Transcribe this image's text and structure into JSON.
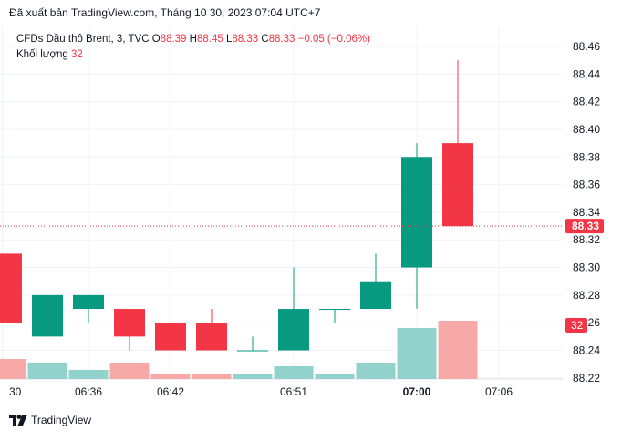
{
  "header": {
    "published": "Đã xuất bản TradingView.com, Tháng 10 30, 2023 07:04 UTC+7"
  },
  "legend": {
    "symbol": "CFDs Dầu thô Brent, 3, TVC",
    "o_label": "O",
    "o_value": "88.39",
    "h_label": "H",
    "h_value": "88.45",
    "l_label": "L",
    "l_value": "88.33",
    "c_label": "C",
    "c_value": "88.33",
    "change": "−0.05 (−0.06%)",
    "volume_label": "Khối lượng",
    "volume_value": "32"
  },
  "brand": {
    "name": "TradingView"
  },
  "colors": {
    "up": "#089981",
    "down": "#f23645",
    "vol_up": "#92d2cc",
    "vol_down": "#f7a9a7",
    "grid": "#f0f3fa",
    "price_line": "#f23645"
  },
  "chart_data": {
    "type": "candlestick",
    "interval": "3m",
    "y_ticks": [
      "88.22",
      "88.24",
      "88.26",
      "88.28",
      "88.30",
      "88.32",
      "88.34",
      "88.36",
      "88.38",
      "88.40",
      "88.42",
      "88.44",
      "88.46"
    ],
    "x_ticks": [
      {
        "label": "30",
        "bar": -0.1,
        "bold": false
      },
      {
        "label": "06:36",
        "bar": 2,
        "bold": false
      },
      {
        "label": "06:42",
        "bar": 4,
        "bold": false
      },
      {
        "label": "06:51",
        "bar": 7,
        "bold": false
      },
      {
        "label": "07:00",
        "bar": 10,
        "bold": true
      },
      {
        "label": "07:06",
        "bar": 12,
        "bold": false
      }
    ],
    "ylim": [
      88.22,
      88.47
    ],
    "last_price": 88.33,
    "last_price_label": "88.33",
    "volume_label": "32",
    "candles": [
      {
        "o": 88.31,
        "h": 88.31,
        "l": 88.26,
        "c": 88.26,
        "v": 11
      },
      {
        "o": 88.25,
        "h": 88.28,
        "l": 88.25,
        "c": 88.28,
        "v": 9
      },
      {
        "o": 88.27,
        "h": 88.28,
        "l": 88.26,
        "c": 88.28,
        "v": 5
      },
      {
        "o": 88.27,
        "h": 88.27,
        "l": 88.24,
        "c": 88.25,
        "v": 9
      },
      {
        "o": 88.26,
        "h": 88.26,
        "l": 88.24,
        "c": 88.24,
        "v": 3
      },
      {
        "o": 88.26,
        "h": 88.27,
        "l": 88.24,
        "c": 88.24,
        "v": 3
      },
      {
        "o": 88.24,
        "h": 88.25,
        "l": 88.24,
        "c": 88.24,
        "v": 3
      },
      {
        "o": 88.24,
        "h": 88.3,
        "l": 88.24,
        "c": 88.27,
        "v": 7
      },
      {
        "o": 88.27,
        "h": 88.27,
        "l": 88.26,
        "c": 88.27,
        "v": 3
      },
      {
        "o": 88.27,
        "h": 88.31,
        "l": 88.27,
        "c": 88.29,
        "v": 9
      },
      {
        "o": 88.3,
        "h": 88.39,
        "l": 88.27,
        "c": 88.38,
        "v": 28
      },
      {
        "o": 88.39,
        "h": 88.45,
        "l": 88.33,
        "c": 88.33,
        "v": 32
      }
    ]
  }
}
